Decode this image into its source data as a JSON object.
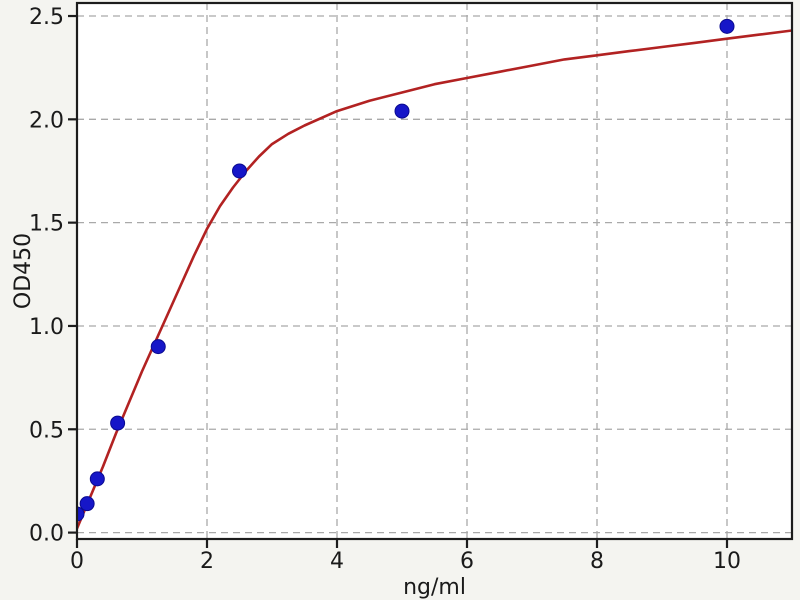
{
  "chart_data": {
    "type": "scatter",
    "title": "",
    "xlabel": "ng/ml",
    "ylabel": "OD450",
    "xlim": [
      0,
      11
    ],
    "ylim": [
      -0.031,
      2.563
    ],
    "grid": true,
    "legend_position": "none",
    "xticks": {
      "values": [
        0,
        2,
        4,
        6,
        8,
        10
      ],
      "labels": [
        "0",
        "2",
        "4",
        "6",
        "8",
        "10"
      ]
    },
    "yticks": {
      "values": [
        0,
        0.5,
        1.0,
        1.5,
        2.0,
        2.5
      ],
      "labels": [
        "0.0",
        "0.5",
        "1.0",
        "1.5",
        "2.0",
        "2.5"
      ]
    },
    "series": [
      {
        "name": "standard-points",
        "type": "scatter",
        "x": [
          0,
          0.156,
          0.3125,
          0.625,
          1.25,
          2.5,
          5,
          10
        ],
        "y": [
          0.09,
          0.14,
          0.26,
          0.53,
          0.9,
          1.75,
          2.04,
          2.45
        ]
      },
      {
        "name": "fit-curve",
        "type": "line",
        "x": [
          0,
          0.2,
          0.4,
          0.6,
          0.8,
          1.0,
          1.2,
          1.4,
          1.6,
          1.8,
          2.0,
          2.2,
          2.4,
          2.6,
          2.8,
          3.0,
          3.25,
          3.5,
          4.0,
          4.5,
          5.0,
          5.5,
          6.0,
          6.5,
          7.0,
          7.5,
          8.0,
          8.5,
          9.0,
          9.5,
          10.0,
          10.5,
          11.0
        ],
        "y": [
          0.02,
          0.17,
          0.32,
          0.48,
          0.63,
          0.78,
          0.92,
          1.06,
          1.2,
          1.34,
          1.47,
          1.58,
          1.67,
          1.75,
          1.82,
          1.88,
          1.93,
          1.97,
          2.04,
          2.09,
          2.13,
          2.17,
          2.2,
          2.23,
          2.26,
          2.29,
          2.31,
          2.33,
          2.35,
          2.37,
          2.39,
          2.41,
          2.43
        ]
      }
    ],
    "colors": {
      "figure_background": "#f4f4f0",
      "plot_background": "#ffffff",
      "spine": "#1c1c1c",
      "grid": "#a9a9a9",
      "tick": "#1c1c1c",
      "text": "#1a1a1a",
      "point_fill": "#1616c8",
      "point_edge": "#0a0a90",
      "curve": "#b22222"
    }
  }
}
